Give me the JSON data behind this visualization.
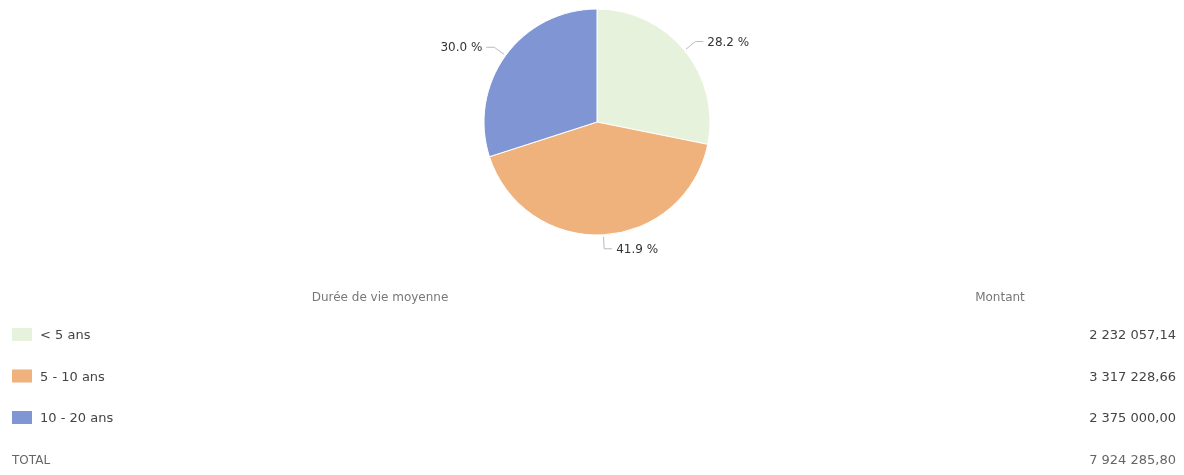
{
  "chart_data": {
    "type": "pie",
    "categories": [
      "< 5 ans",
      "5 - 10 ans",
      "10 - 20 ans"
    ],
    "values": [
      28.2,
      41.9,
      30.0
    ],
    "colors": [
      "#e6f2dc",
      "#f0b27c",
      "#8095d4"
    ],
    "value_labels": [
      "28.2 %",
      "41.9 %",
      "30.0 %"
    ],
    "legend": "bottom",
    "annotations": [
      "Durée de vie moyenne",
      "Montant",
      "2 232 057,14",
      "3 317 228,66",
      "2 375 000,00",
      "TOTAL",
      "7 924 285,80"
    ]
  }
}
